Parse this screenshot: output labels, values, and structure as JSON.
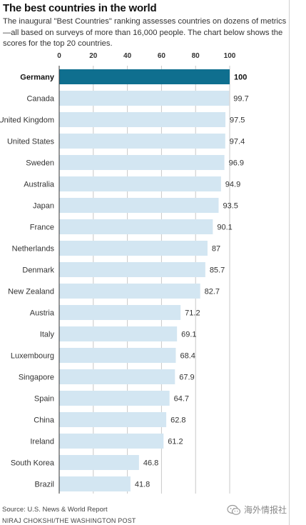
{
  "title": "The best countries in the world",
  "subtitle": "The inaugural \"Best Countries\" ranking assesses countries on dozens of metrics—all based on surveys of more than 16,000 people. The chart below shows the scores for the top 20 countries.",
  "source": "Source: U.S. News & World Report",
  "credit": "NIRAJ CHOKSHI/THE WASHINGTON POST",
  "watermark": "海外情报社",
  "colors": {
    "highlight_bar": "#0f6f8f",
    "bar": "#d3e6f2",
    "axis_line": "#333333",
    "grid": "#c8c8c8"
  },
  "chart_data": {
    "type": "bar",
    "orientation": "horizontal",
    "title": "The best countries in the world",
    "xlabel": "",
    "ylabel": "",
    "xlim": [
      0,
      100
    ],
    "ticks": [
      0,
      20,
      40,
      60,
      80,
      100
    ],
    "tick_labels": [
      "0",
      "20",
      "40",
      "60",
      "80",
      "100"
    ],
    "grid": true,
    "highlight": "Germany",
    "categories": [
      "Germany",
      "Canada",
      "United Kingdom",
      "United States",
      "Sweden",
      "Australia",
      "Japan",
      "France",
      "Netherlands",
      "Denmark",
      "New Zealand",
      "Austria",
      "Italy",
      "Luxembourg",
      "Singapore",
      "Spain",
      "China",
      "Ireland",
      "South Korea",
      "Brazil"
    ],
    "values": [
      100,
      99.7,
      97.5,
      97.4,
      96.9,
      94.9,
      93.5,
      90.1,
      87,
      85.7,
      82.7,
      71.2,
      69.1,
      68.4,
      67.9,
      64.7,
      62.8,
      61.2,
      46.8,
      41.8
    ],
    "value_labels": [
      "100",
      "99.7",
      "97.5",
      "97.4",
      "96.9",
      "94.9",
      "93.5",
      "90.1",
      "87",
      "85.7",
      "82.7",
      "71.2",
      "69.1",
      "68.4",
      "67.9",
      "64.7",
      "62.8",
      "61.2",
      "46.8",
      "41.8"
    ]
  }
}
